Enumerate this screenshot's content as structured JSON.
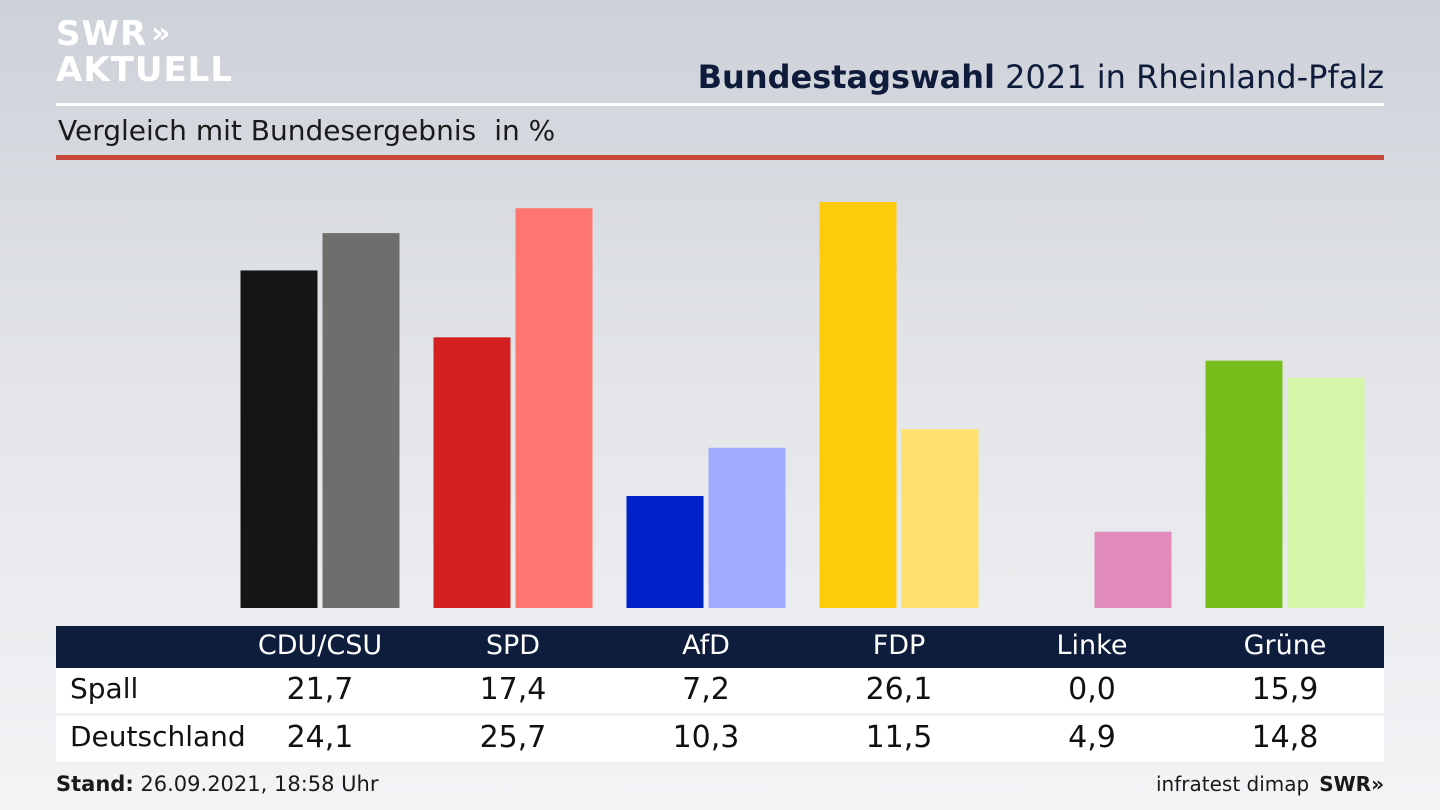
{
  "logo": {
    "line1": "SWR",
    "chevrons": "»",
    "line2": "AKTUELL"
  },
  "header": {
    "title_bold": "Bundestagswahl",
    "title_rest": " 2021 in Rheinland-Pfalz",
    "subtitle": "Vergleich mit Bundesergebnis",
    "unit": "in %"
  },
  "colors": {
    "header_bar": "#0f1d3c",
    "red_rule": "#c9493b"
  },
  "chart_data": {
    "type": "bar",
    "categories": [
      "CDU/CSU",
      "SPD",
      "AfD",
      "FDP",
      "Linke",
      "Grüne"
    ],
    "series": [
      {
        "name": "Spall",
        "values": [
          21.7,
          17.4,
          7.2,
          26.1,
          0.0,
          15.9
        ],
        "colors": [
          "#151515",
          "#d42020",
          "#0020c8",
          "#fecb0a",
          "#e08bbb",
          "#77bd1c"
        ]
      },
      {
        "name": "Deutschland",
        "values": [
          24.1,
          25.7,
          10.3,
          11.5,
          4.9,
          14.8
        ],
        "colors": [
          "#6f6e6c",
          "#ff7670",
          "#9fabff",
          "#fde06e",
          "#e08bbb",
          "#d5f5a8"
        ]
      }
    ],
    "value_labels": [
      [
        "21,7",
        "17,4",
        "7,2",
        "26,1",
        "0,0",
        "15,9"
      ],
      [
        "24,1",
        "25,7",
        "10,3",
        "11,5",
        "4,9",
        "14,8"
      ]
    ],
    "ylim": [
      0,
      27
    ]
  },
  "footer": {
    "stand_label": "Stand:",
    "stand_value": " 26.09.2021, 18:58 Uhr",
    "source": "infratest dimap",
    "brand": "SWR»"
  }
}
